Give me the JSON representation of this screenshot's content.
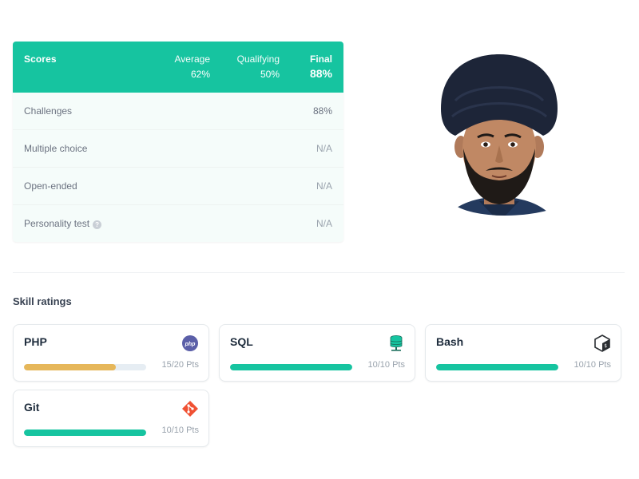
{
  "scores": {
    "title": "Scores",
    "average": {
      "label": "Average",
      "value": "62%"
    },
    "qualifying": {
      "label": "Qualifying",
      "value": "50%"
    },
    "final": {
      "label": "Final",
      "value": "88%"
    },
    "rows": [
      {
        "name": "Challenges",
        "value": "88%"
      },
      {
        "name": "Multiple choice",
        "value": "N/A"
      },
      {
        "name": "Open-ended",
        "value": "N/A"
      },
      {
        "name": "Personality test",
        "value": "N/A",
        "help_icon": "question-circle-icon"
      }
    ]
  },
  "skills": {
    "title": "Skill ratings",
    "items": [
      {
        "name": "PHP",
        "points": "15/20 Pts",
        "progress": 0.75,
        "icon": "php-icon",
        "color": "#e6b75a"
      },
      {
        "name": "SQL",
        "points": "10/10 Pts",
        "progress": 1.0,
        "icon": "database-icon",
        "color": "#16c4a0"
      },
      {
        "name": "Bash",
        "points": "10/10 Pts",
        "progress": 1.0,
        "icon": "bash-icon",
        "color": "#16c4a0"
      },
      {
        "name": "Git",
        "points": "10/10 Pts",
        "progress": 1.0,
        "icon": "git-icon",
        "color": "#16c4a0"
      }
    ]
  },
  "colors": {
    "accent": "#16c4a0",
    "partial_bar": "#e6b75a",
    "php_icon": "#5b5fa8",
    "git_icon": "#f05133"
  }
}
